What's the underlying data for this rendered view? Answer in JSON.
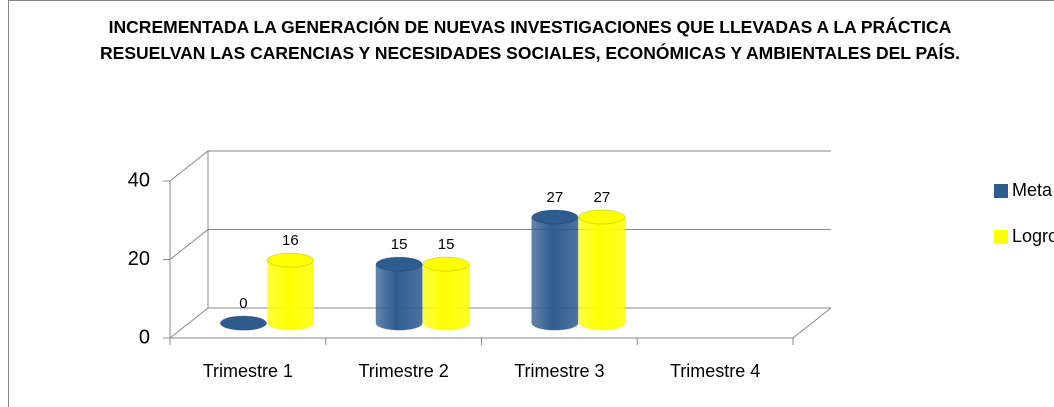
{
  "chart_data": {
    "type": "bar3d",
    "title": "INCREMENTADA LA GENERACIÓN DE NUEVAS INVESTIGACIONES QUE LLEVADAS A LA PRÁCTICA RESUELVAN LAS CARENCIAS Y NECESIDADES SOCIALES, ECONÓMICAS Y AMBIENTALES DEL PAÍS.",
    "categories": [
      "Trimestre 1",
      "Trimestre 2",
      "Trimestre 3",
      "Trimestre 4"
    ],
    "series": [
      {
        "name": "Meta",
        "color": "#2f5c8f",
        "values": [
          0,
          15,
          27,
          null
        ]
      },
      {
        "name": "Logro",
        "color": "#ffff00",
        "values": [
          16,
          15,
          27,
          null
        ]
      }
    ],
    "ylim": [
      0,
      40
    ],
    "yticks": [
      0,
      20,
      40
    ],
    "grid": true,
    "legend": "right"
  }
}
